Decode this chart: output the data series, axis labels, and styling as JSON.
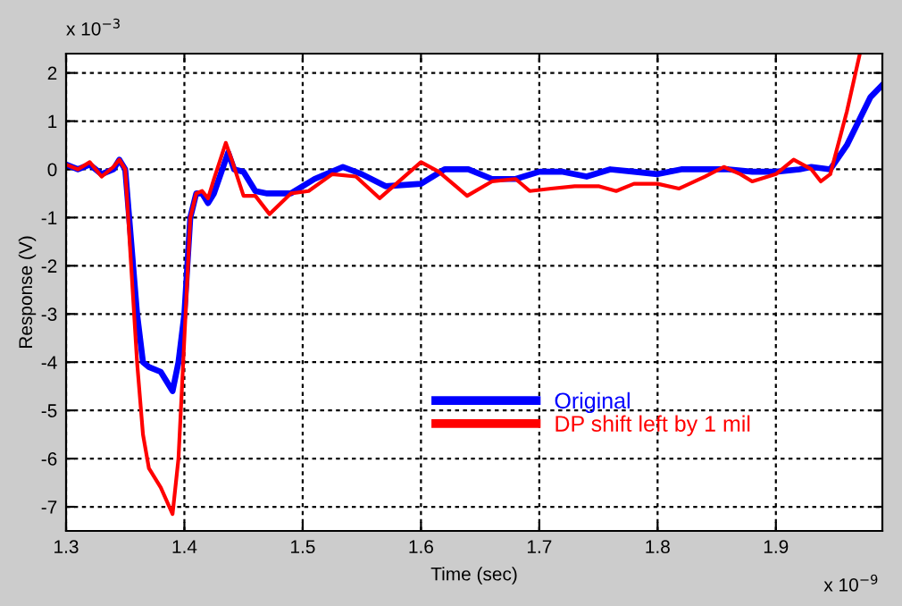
{
  "chart_data": {
    "type": "line",
    "xlabel": "Time (sec)",
    "ylabel": "Response (V)",
    "annotations": [
      "x 10$^{−3}$",
      "x 10$^{−9}$"
    ],
    "xlim": [
      1.3,
      1.99
    ],
    "ylim": [
      -7.5,
      2.4
    ],
    "xticks": [
      1.3,
      1.4,
      1.5,
      1.6,
      1.7,
      1.8,
      1.9
    ],
    "yticks": [
      -7,
      -6,
      -5,
      -4,
      -3,
      -2,
      -1,
      0,
      1,
      2
    ],
    "grid": true,
    "legend": "bottom right",
    "line_style": "solid",
    "marker": "none",
    "series": [
      {
        "name": "Original",
        "color": "#0000ff",
        "x": [
          1.3,
          1.31,
          1.32,
          1.33,
          1.34,
          1.345,
          1.35,
          1.355,
          1.36,
          1.365,
          1.37,
          1.38,
          1.39,
          1.395,
          1.4,
          1.405,
          1.41,
          1.415,
          1.42,
          1.425,
          1.437,
          1.442,
          1.45,
          1.46,
          1.47,
          1.49,
          1.51,
          1.534,
          1.55,
          1.57,
          1.6,
          1.62,
          1.64,
          1.66,
          1.68,
          1.7,
          1.72,
          1.74,
          1.76,
          1.78,
          1.8,
          1.82,
          1.84,
          1.86,
          1.88,
          1.9,
          1.92,
          1.93,
          1.946,
          1.96,
          1.97,
          1.98,
          1.99
        ],
        "values": [
          0.1,
          0.0,
          0.1,
          -0.1,
          0.0,
          0.2,
          0.0,
          -1.5,
          -3.0,
          -4.0,
          -4.1,
          -4.2,
          -4.6,
          -4.0,
          -3.0,
          -1.0,
          -0.5,
          -0.5,
          -0.7,
          -0.5,
          0.35,
          0.0,
          -0.05,
          -0.45,
          -0.5,
          -0.5,
          -0.2,
          0.05,
          -0.1,
          -0.35,
          -0.3,
          0.0,
          0.0,
          -0.2,
          -0.2,
          -0.05,
          -0.05,
          -0.15,
          0.0,
          -0.05,
          -0.1,
          0.0,
          0.0,
          0.0,
          -0.05,
          -0.05,
          0.0,
          0.05,
          0.0,
          0.5,
          1.0,
          1.5,
          1.75
        ]
      },
      {
        "name": "DP shift left by 1 mil",
        "color": "#ff0000",
        "x": [
          1.3,
          1.31,
          1.32,
          1.33,
          1.34,
          1.345,
          1.35,
          1.355,
          1.36,
          1.365,
          1.37,
          1.38,
          1.39,
          1.395,
          1.4,
          1.405,
          1.41,
          1.415,
          1.42,
          1.425,
          1.435,
          1.44,
          1.45,
          1.46,
          1.472,
          1.49,
          1.505,
          1.525,
          1.545,
          1.565,
          1.6,
          1.615,
          1.639,
          1.66,
          1.68,
          1.692,
          1.71,
          1.73,
          1.75,
          1.765,
          1.78,
          1.8,
          1.818,
          1.84,
          1.856,
          1.87,
          1.88,
          1.9,
          1.915,
          1.93,
          1.938,
          1.946,
          1.96,
          1.971
        ],
        "values": [
          0.1,
          0.0,
          0.15,
          -0.15,
          0.05,
          0.2,
          0.0,
          -2.0,
          -4.0,
          -5.5,
          -6.2,
          -6.6,
          -7.15,
          -6.0,
          -3.5,
          -1.0,
          -0.5,
          -0.45,
          -0.6,
          -0.2,
          0.55,
          0.2,
          -0.55,
          -0.55,
          -0.93,
          -0.5,
          -0.45,
          -0.1,
          -0.15,
          -0.6,
          0.15,
          -0.05,
          -0.55,
          -0.25,
          -0.2,
          -0.45,
          -0.4,
          -0.35,
          -0.35,
          -0.45,
          -0.3,
          -0.3,
          -0.4,
          -0.15,
          0.05,
          -0.1,
          -0.25,
          -0.1,
          0.2,
          0.0,
          -0.25,
          -0.1,
          1.2,
          2.4
        ]
      }
    ]
  }
}
